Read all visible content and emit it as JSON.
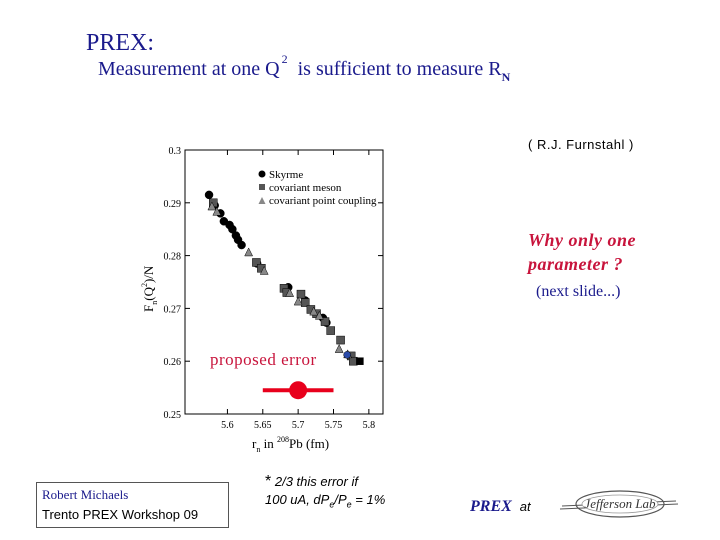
{
  "slide": {
    "title": "PREX:",
    "subtitle_pre": "Measurement  at one  Q",
    "subtitle_sup": "2",
    "subtitle_post": "is  sufficient  to  measure  R",
    "subtitle_sub": "N",
    "credit": "( R.J.  Furnstahl )",
    "why_line1": "Why  only   one",
    "why_line2": "parameter  ?",
    "next_slide": "(next slide...)",
    "proposed_error": "proposed  error",
    "footnote_star": "*",
    "footnote_line1": "2/3  this  error  if",
    "footnote_line2": "100 uA,  dP",
    "footnote_sub1": "e",
    "footnote_line2b": "/P",
    "footnote_sub2": "e",
    "footnote_line2c": " = 1%",
    "author": "Robert  Michaels",
    "workshop": "Trento  PREX   Workshop   09",
    "prex": "PREX",
    "at": "at",
    "logo_text": "Jefferson Lab"
  },
  "chart_data": {
    "type": "scatter",
    "xlim": [
      5.54,
      5.82
    ],
    "ylim": [
      0.25,
      0.3
    ],
    "x_ticks": [
      "5.6",
      "5.65",
      "5.7",
      "5.75",
      "5.8"
    ],
    "y_ticks": [
      "0.25",
      "0.26",
      "0.27",
      "0.28",
      "0.29",
      "0.3"
    ],
    "xlabel_r": "r",
    "xlabel_sub": "n",
    "xlabel_mid": " in ",
    "xlabel_sup": "208",
    "xlabel_end": "Pb (fm)",
    "ylabel": "F",
    "ylabel_sub": "n",
    "ylabel_end": "(Q",
    "ylabel_sup": "2",
    "ylabel_tail": ")/N",
    "colors": {
      "skyrme": "#000000",
      "meson": "#555555",
      "point": "#888888",
      "error": "#e8001c"
    },
    "series": [
      {
        "name": "Skyrme",
        "marker": "circle",
        "points": [
          [
            5.574,
            0.2915
          ],
          [
            5.582,
            0.2895
          ],
          [
            5.59,
            0.288
          ],
          [
            5.595,
            0.2865
          ],
          [
            5.603,
            0.2858
          ],
          [
            5.607,
            0.285
          ],
          [
            5.612,
            0.2838
          ],
          [
            5.615,
            0.283
          ],
          [
            5.62,
            0.282
          ],
          [
            5.642,
            0.2785
          ],
          [
            5.686,
            0.274
          ],
          [
            5.71,
            0.2715
          ],
          [
            5.735,
            0.2682
          ],
          [
            5.74,
            0.2673
          ]
        ]
      },
      {
        "name": "covariant meson",
        "marker": "square",
        "points": [
          [
            5.58,
            0.29
          ],
          [
            5.641,
            0.2787
          ],
          [
            5.648,
            0.2776
          ],
          [
            5.68,
            0.2738
          ],
          [
            5.684,
            0.273
          ],
          [
            5.704,
            0.2727
          ],
          [
            5.71,
            0.2711
          ],
          [
            5.718,
            0.2698
          ],
          [
            5.726,
            0.269
          ],
          [
            5.738,
            0.2675
          ],
          [
            5.746,
            0.2658
          ],
          [
            5.76,
            0.264
          ],
          [
            5.775,
            0.261
          ],
          [
            5.778,
            0.26
          ]
        ]
      },
      {
        "name": "covariant point coupling",
        "marker": "triangle",
        "points": [
          [
            5.578,
            0.2892
          ],
          [
            5.585,
            0.2882
          ],
          [
            5.63,
            0.2805
          ],
          [
            5.652,
            0.277
          ],
          [
            5.688,
            0.2728
          ],
          [
            5.7,
            0.2712
          ],
          [
            5.722,
            0.2693
          ],
          [
            5.73,
            0.2685
          ],
          [
            5.758,
            0.2622
          ],
          [
            5.77,
            0.2612
          ]
        ]
      }
    ],
    "proposed_error": {
      "x": 5.7,
      "y": 0.2545,
      "x_minus": 5.65,
      "x_plus": 5.75
    },
    "alt_error_markers": [
      {
        "marker": "square",
        "x": 5.776,
        "y": 0.26,
        "color": "#000000"
      },
      {
        "marker": "circle",
        "x": 5.758,
        "y": 0.2612,
        "color": "#2a4aa8"
      }
    ]
  }
}
